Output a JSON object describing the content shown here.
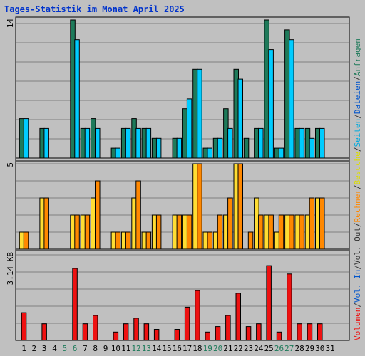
{
  "title": "Tages-Statistik im Monat April 2025",
  "chart_data": {
    "type": "bar",
    "title": "Tages-Statistik im Monat April 2025",
    "categories": [
      "1",
      "2",
      "3",
      "4",
      "5",
      "6",
      "7",
      "8",
      "9",
      "10",
      "11",
      "12",
      "13",
      "14",
      "15",
      "16",
      "17",
      "18",
      "19",
      "20",
      "21",
      "22",
      "23",
      "24",
      "25",
      "26",
      "27",
      "28",
      "29",
      "30",
      "31"
    ],
    "weekend_days": [
      "5",
      "6",
      "12",
      "13",
      "19",
      "20",
      "26",
      "27"
    ],
    "panels": [
      {
        "id": "top",
        "ymax_label": "14",
        "ylim": [
          0,
          14
        ],
        "series": [
          {
            "name": "Anfragen",
            "color": "#1e7a5a",
            "values": [
              4,
              0,
              3,
              0,
              0,
              14,
              3,
              4,
              0,
              1,
              3,
              4,
              3,
              2,
              0,
              2,
              5,
              9,
              1,
              2,
              5,
              9,
              2,
              3,
              14,
              1,
              13,
              3,
              3,
              3,
              0
            ]
          },
          {
            "name": "Dateien",
            "color": "#00ccff",
            "values": [
              4,
              0,
              3,
              0,
              0,
              12,
              3,
              3,
              0,
              1,
              3,
              3,
              3,
              2,
              0,
              2,
              6,
              9,
              1,
              2,
              3,
              8,
              0,
              3,
              11,
              1,
              12,
              3,
              2,
              3,
              0
            ]
          }
        ]
      },
      {
        "id": "middle",
        "ymax_label": "5",
        "ylim": [
          0,
          5
        ],
        "series": [
          {
            "name": "Seiten",
            "color": "#ffff66",
            "values": []
          },
          {
            "name": "Besuche",
            "color": "#ffdd33",
            "values": [
              1,
              0,
              3,
              0,
              0,
              2,
              2,
              3,
              0,
              1,
              1,
              3,
              1,
              2,
              0,
              2,
              2,
              5,
              1,
              1,
              2,
              5,
              0,
              3,
              2,
              1,
              2,
              2,
              2,
              3,
              0
            ]
          },
          {
            "name": "Rechner",
            "color": "#ff8800",
            "values": [
              1,
              0,
              3,
              0,
              0,
              2,
              2,
              4,
              0,
              1,
              1,
              4,
              1,
              2,
              0,
              2,
              2,
              5,
              1,
              2,
              3,
              5,
              1,
              2,
              2,
              2,
              2,
              2,
              3,
              3,
              0
            ]
          },
          {
            "name": "Out",
            "color": "#ff8800",
            "values": []
          }
        ]
      },
      {
        "id": "bottom",
        "ymax_label": "3.14 KB",
        "ylim": [
          0,
          3.14
        ],
        "series": [
          {
            "name": "Volumen",
            "color": "#ee1111",
            "values": [
              1.0,
              0,
              0.6,
              0,
              0,
              2.6,
              0.6,
              0.9,
              0,
              0.3,
              0.6,
              0.8,
              0.6,
              0.4,
              0,
              0.4,
              1.2,
              1.8,
              0.3,
              0.5,
              0.9,
              1.7,
              0.5,
              0.6,
              2.7,
              0.3,
              2.4,
              0.6,
              0.6,
              0.6,
              0
            ]
          }
        ]
      }
    ],
    "legend_vertical": [
      {
        "text": "Anfragen",
        "color": "#1e7a5a"
      },
      {
        "text": "/",
        "color": "#333333"
      },
      {
        "text": "Dateien",
        "color": "#0055cc"
      },
      {
        "text": "/",
        "color": "#333333"
      },
      {
        "text": "Seiten",
        "color": "#00aadd"
      },
      {
        "text": "/",
        "color": "#333333"
      },
      {
        "text": "Besuche",
        "color": "#dddd00"
      },
      {
        "text": "/",
        "color": "#333333"
      },
      {
        "text": "Rechner",
        "color": "#ff8800"
      },
      {
        "text": "/",
        "color": "#333333"
      },
      {
        "text": "Vol. Out",
        "color": "#333333"
      },
      {
        "text": "/",
        "color": "#333333"
      },
      {
        "text": "Vol. In",
        "color": "#0055cc"
      },
      {
        "text": "/",
        "color": "#333333"
      },
      {
        "text": "Volumen",
        "color": "#ee1111"
      }
    ],
    "colors": {
      "background": "#c0c0c0",
      "grid": "#808080",
      "title": "#0033cc",
      "weekday_label": "#000000",
      "weekend_label": "#1e7a5a"
    }
  }
}
